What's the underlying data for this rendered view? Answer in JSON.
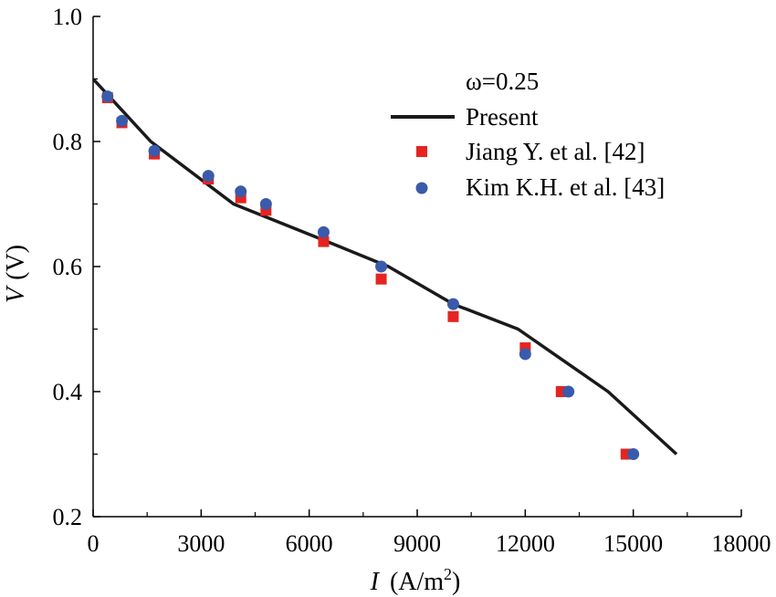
{
  "chart_data": {
    "type": "line",
    "title": "",
    "xlabel_var": "I",
    "xlabel_unit_prefix": "(A/m",
    "xlabel_unit_sup": "2",
    "xlabel_unit_suffix": ")",
    "ylabel_var": "V",
    "ylabel_unit": "(V)",
    "xlim": [
      0,
      18000
    ],
    "ylim": [
      0.2,
      1.0
    ],
    "x_ticks": [
      0,
      3000,
      6000,
      9000,
      12000,
      15000,
      18000
    ],
    "x_tick_labels": [
      "0",
      "3000",
      "6000",
      "9000",
      "12000",
      "15000",
      "18000"
    ],
    "y_ticks": [
      0.2,
      0.4,
      0.6,
      0.8,
      1.0
    ],
    "y_tick_labels": [
      "0.2",
      "0.4",
      "0.6",
      "0.8",
      "1.0"
    ],
    "grid": false,
    "legend_title": "ω=0.25",
    "legend_position": "top-right",
    "series": [
      {
        "name": "Present",
        "kind": "line",
        "color": "#1a1a1a",
        "x": [
          0,
          1600,
          3900,
          6500,
          8200,
          10000,
          11800,
          14300,
          16200
        ],
        "y": [
          0.9,
          0.8,
          0.7,
          0.64,
          0.6,
          0.54,
          0.5,
          0.4,
          0.3
        ]
      },
      {
        "name": "Jiang Y. et al. [42]",
        "kind": "square",
        "color": "#e52421",
        "x": [
          400,
          800,
          1700,
          3200,
          4100,
          4800,
          6400,
          8000,
          10000,
          12000,
          13000,
          14800
        ],
        "y": [
          0.87,
          0.83,
          0.78,
          0.74,
          0.71,
          0.69,
          0.64,
          0.58,
          0.52,
          0.47,
          0.4,
          0.3
        ]
      },
      {
        "name": "Kim K.H. et al. [43]",
        "kind": "circle",
        "color": "#3a5bab",
        "x": [
          400,
          800,
          1700,
          3200,
          4100,
          4800,
          6400,
          8000,
          10000,
          12000,
          13200,
          15000
        ],
        "y": [
          0.872,
          0.833,
          0.785,
          0.745,
          0.72,
          0.7,
          0.655,
          0.6,
          0.54,
          0.46,
          0.4,
          0.3
        ]
      }
    ]
  }
}
